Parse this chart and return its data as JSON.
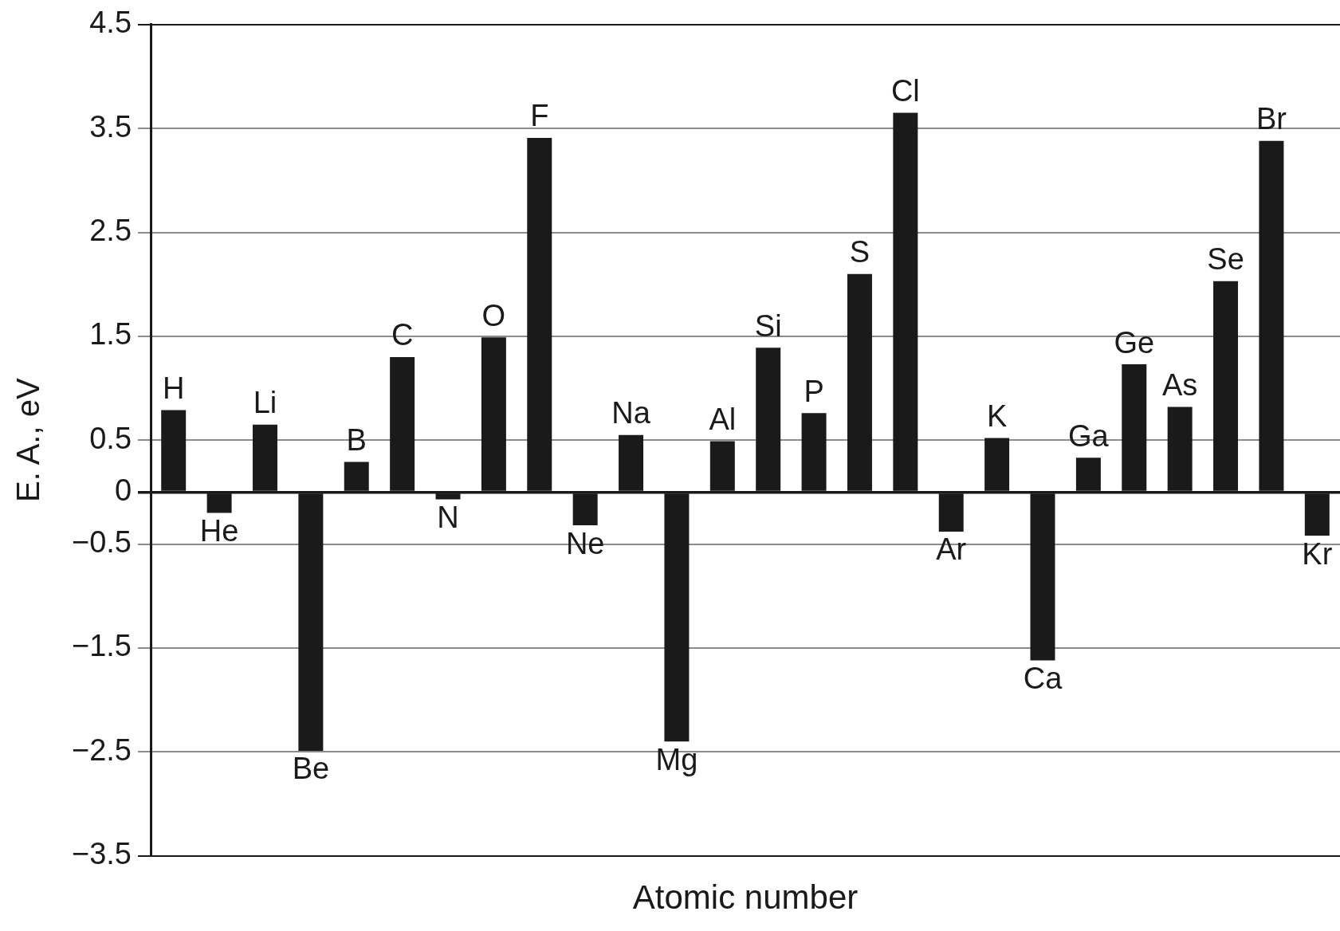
{
  "chart_data": {
    "type": "bar",
    "xlabel": "Atomic number",
    "ylabel": "E. A., eV",
    "categories": [
      "H",
      "He",
      "Li",
      "Be",
      "B",
      "C",
      "N",
      "O",
      "F",
      "Ne",
      "Na",
      "Mg",
      "Al",
      "Si",
      "P",
      "S",
      "Cl",
      "Ar",
      "K",
      "Ca",
      "Ga",
      "Ge",
      "As",
      "Se",
      "Br",
      "Kr"
    ],
    "values": [
      0.79,
      -0.2,
      0.65,
      -2.49,
      0.29,
      1.3,
      -0.07,
      1.49,
      3.41,
      -0.32,
      0.55,
      -2.4,
      0.49,
      1.39,
      0.76,
      2.1,
      3.65,
      -0.38,
      0.52,
      -1.62,
      0.33,
      1.23,
      0.82,
      2.03,
      3.38,
      -0.42
    ],
    "color": "#1a1a1a",
    "ylim": [
      -3.5,
      4.5
    ],
    "yticks": [
      4.5,
      3.5,
      2.5,
      1.5,
      0.5,
      0,
      {
        "value": -0.5,
        "label": "−0.5"
      },
      {
        "value": -1.5,
        "label": "−1.5"
      },
      {
        "value": -2.5,
        "label": "−2.5"
      },
      {
        "value": -3.5,
        "label": "−3.5"
      }
    ],
    "grid": "y",
    "tick_labels": "y",
    "legend": false
  }
}
